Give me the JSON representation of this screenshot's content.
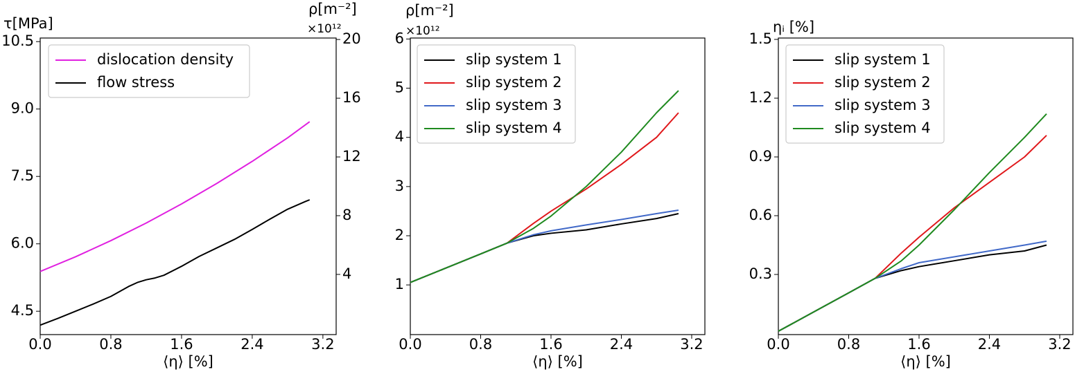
{
  "chart_data": [
    {
      "type": "line",
      "ylabel": "τ[MPa]",
      "y2label": "ρ[m⁻²]",
      "y2_offset_label": "×10¹²",
      "xlabel": "⟨η⟩ [%]",
      "xlim": [
        0,
        3.35
      ],
      "xticks": [
        {
          "value": 0,
          "label": "0.0"
        },
        0.8,
        1.6,
        2.4,
        3.2
      ],
      "ylim": [
        3.98,
        10.58
      ],
      "yticks": [
        4.5,
        {
          "value": 6,
          "label": "6.0"
        },
        7.5,
        {
          "value": 9,
          "label": "9.0"
        },
        10.5
      ],
      "y2lim": [
        -0.1,
        20.1
      ],
      "y2ticks": [
        4,
        8,
        12,
        16,
        20
      ],
      "legend": "upper left",
      "series": [
        {
          "name": "dislocation density",
          "color": "#e020e0",
          "axis": "y2",
          "x": [
            0,
            0.4,
            0.8,
            1.2,
            1.6,
            2.0,
            2.4,
            2.8,
            3.05
          ],
          "values": [
            4.2,
            5.2,
            6.3,
            7.5,
            8.8,
            10.2,
            11.7,
            13.3,
            14.4
          ]
        },
        {
          "name": "flow stress",
          "color": "#000000",
          "x": [
            0,
            0.2,
            0.4,
            0.6,
            0.8,
            1.0,
            1.1,
            1.2,
            1.3,
            1.4,
            1.6,
            1.8,
            2.0,
            2.2,
            2.4,
            2.6,
            2.8,
            3.0,
            3.05
          ],
          "values": [
            4.19,
            4.34,
            4.5,
            4.66,
            4.83,
            5.05,
            5.14,
            5.2,
            5.24,
            5.3,
            5.5,
            5.72,
            5.91,
            6.1,
            6.32,
            6.55,
            6.77,
            6.94,
            6.98
          ]
        }
      ]
    },
    {
      "type": "line",
      "ylabel": "ρ[m⁻²]",
      "y_offset_label": "×10¹²",
      "xlabel": "⟨η⟩ [%]",
      "xlim": [
        0,
        3.35
      ],
      "xticks": [
        {
          "value": 0,
          "label": "0.0"
        },
        0.8,
        1.6,
        2.4,
        3.2
      ],
      "ylim": [
        -0.01,
        6.02
      ],
      "yticks": [
        1,
        2,
        3,
        4,
        5,
        6
      ],
      "legend": "upper left",
      "series": [
        {
          "name": "slip system 1",
          "color": "#000000",
          "x": [
            0,
            0.4,
            0.8,
            1.1,
            1.4,
            1.6,
            2.0,
            2.4,
            2.8,
            3.05
          ],
          "values": [
            1.05,
            1.34,
            1.63,
            1.85,
            2.0,
            2.05,
            2.12,
            2.24,
            2.35,
            2.45
          ]
        },
        {
          "name": "slip system 2",
          "color": "#e0181b",
          "x": [
            0,
            0.4,
            0.8,
            1.1,
            1.4,
            1.6,
            2.0,
            2.4,
            2.8,
            3.05
          ],
          "values": [
            1.05,
            1.34,
            1.63,
            1.85,
            2.25,
            2.5,
            2.95,
            3.45,
            4.0,
            4.5
          ]
        },
        {
          "name": "slip system 3",
          "color": "#4169c8",
          "x": [
            0,
            0.4,
            0.8,
            1.1,
            1.4,
            1.6,
            2.0,
            2.4,
            2.8,
            3.05
          ],
          "values": [
            1.05,
            1.34,
            1.63,
            1.85,
            2.02,
            2.1,
            2.22,
            2.33,
            2.45,
            2.52
          ]
        },
        {
          "name": "slip system 4",
          "color": "#1f8a1f",
          "x": [
            0,
            0.4,
            0.8,
            1.1,
            1.4,
            1.6,
            2.0,
            2.4,
            2.8,
            3.05
          ],
          "values": [
            1.05,
            1.34,
            1.63,
            1.85,
            2.15,
            2.4,
            3.0,
            3.7,
            4.5,
            4.95
          ]
        }
      ]
    },
    {
      "type": "line",
      "ylabel": "ηᵢ [%]",
      "xlabel": "⟨η⟩ [%]",
      "xlim": [
        0,
        3.35
      ],
      "xticks": [
        {
          "value": 0,
          "label": "0.0"
        },
        0.8,
        1.6,
        2.4,
        3.2
      ],
      "ylim": [
        -0.007,
        1.507
      ],
      "yticks": [
        0.3,
        0.6,
        0.9,
        1.2,
        1.5
      ],
      "legend": "upper left",
      "series": [
        {
          "name": "slip system 1",
          "color": "#000000",
          "x": [
            0,
            0.4,
            0.8,
            1.1,
            1.4,
            1.6,
            2.0,
            2.4,
            2.8,
            3.05
          ],
          "values": [
            0.01,
            0.108,
            0.206,
            0.28,
            0.32,
            0.34,
            0.37,
            0.4,
            0.42,
            0.45
          ]
        },
        {
          "name": "slip system 2",
          "color": "#e0181b",
          "x": [
            0,
            0.4,
            0.8,
            1.1,
            1.4,
            1.6,
            2.0,
            2.4,
            2.8,
            3.05
          ],
          "values": [
            0.01,
            0.108,
            0.206,
            0.28,
            0.41,
            0.49,
            0.64,
            0.77,
            0.9,
            1.01
          ]
        },
        {
          "name": "slip system 3",
          "color": "#4169c8",
          "x": [
            0,
            0.4,
            0.8,
            1.1,
            1.4,
            1.6,
            2.0,
            2.4,
            2.8,
            3.05
          ],
          "values": [
            0.01,
            0.108,
            0.206,
            0.28,
            0.33,
            0.36,
            0.39,
            0.42,
            0.45,
            0.47
          ]
        },
        {
          "name": "slip system 4",
          "color": "#1f8a1f",
          "x": [
            0,
            0.4,
            0.8,
            1.1,
            1.4,
            1.6,
            2.0,
            2.4,
            2.8,
            3.05
          ],
          "values": [
            0.01,
            0.108,
            0.206,
            0.28,
            0.37,
            0.45,
            0.63,
            0.82,
            1.0,
            1.12
          ]
        }
      ]
    }
  ]
}
